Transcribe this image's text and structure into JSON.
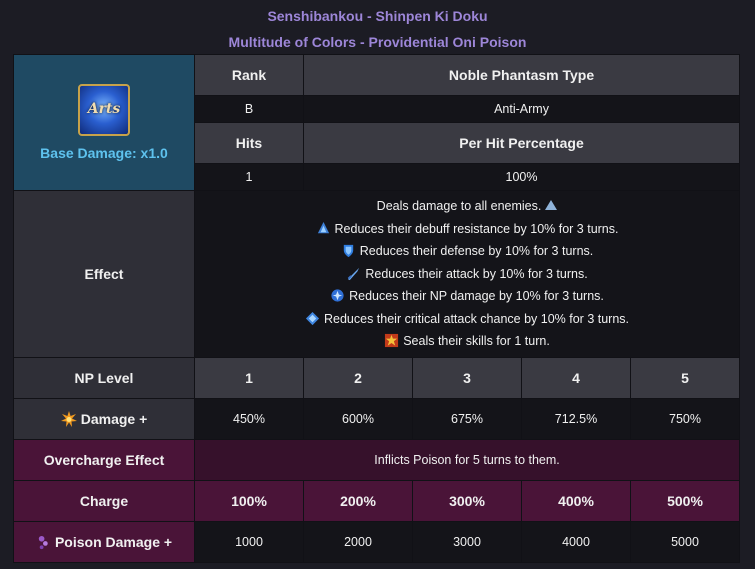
{
  "header": {
    "title_jp": "Senshibankou - Shinpen Ki Doku",
    "title_en": "Multitude of Colors - Providential Oni Poison"
  },
  "card": {
    "icon_text": "Arts",
    "base_damage": "Base Damage: x1.0"
  },
  "info": {
    "rank_label": "Rank",
    "type_label": "Noble Phantasm Type",
    "rank_value": "B",
    "type_value": "Anti-Army",
    "hits_label": "Hits",
    "per_hit_label": "Per Hit Percentage",
    "hits_value": "1",
    "per_hit_value": "100%"
  },
  "effect": {
    "label": "Effect",
    "lines": [
      "Deals damage to all enemies.",
      "Reduces their debuff resistance by 10% for 3 turns.",
      "Reduces their defense by 10% for 3 turns.",
      "Reduces their attack by 10% for 3 turns.",
      "Reduces their NP damage by 10% for 3 turns.",
      "Reduces their critical attack chance by 10% for 3 turns.",
      "Seals their skills for 1 turn."
    ]
  },
  "np_level": {
    "label": "NP Level",
    "levels": [
      "1",
      "2",
      "3",
      "4",
      "5"
    ]
  },
  "damage": {
    "label": "Damage +",
    "values": [
      "450%",
      "600%",
      "675%",
      "712.5%",
      "750%"
    ]
  },
  "overcharge": {
    "label": "Overcharge Effect",
    "text": "Inflicts Poison for 5 turns to them."
  },
  "charge": {
    "label": "Charge",
    "values": [
      "100%",
      "200%",
      "300%",
      "400%",
      "500%"
    ]
  },
  "poison": {
    "label": "Poison Damage +",
    "values": [
      "1000",
      "2000",
      "3000",
      "4000",
      "5000"
    ]
  },
  "colors": {
    "title": "#9d86d8",
    "base_damage": "#5ec2ee",
    "overcharge_bg": "#4a1438"
  }
}
